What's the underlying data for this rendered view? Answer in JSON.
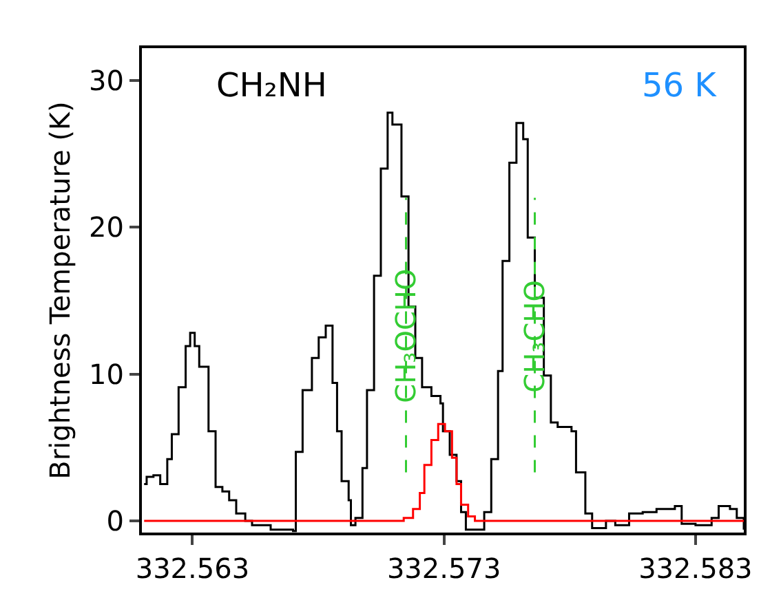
{
  "chart_data": {
    "type": "step",
    "ylabel": "Brightness Temperature (K)",
    "annotations": [
      "CH₂NH",
      "56 K"
    ],
    "xlim": [
      332.56099,
      332.58492
    ],
    "xticks": [
      332.563,
      332.573,
      332.583
    ],
    "ylim": [
      -0.8,
      32.2
    ],
    "yticks": [
      0,
      10,
      20,
      30
    ],
    "grid": false,
    "marker": "none",
    "line_style": "solid",
    "series": [
      {
        "color": "#000000",
        "x": [
          332.56108,
          332.56118,
          332.56145,
          332.56172,
          332.562,
          332.56218,
          332.56245,
          332.56273,
          332.56291,
          332.56309,
          332.56327,
          332.56364,
          332.56392,
          332.56419,
          332.56446,
          332.56474,
          332.5651,
          332.56537,
          332.56611,
          332.567,
          332.56711,
          332.56738,
          332.56775,
          332.56802,
          332.5683,
          332.56857,
          332.56875,
          332.56893,
          332.56921,
          332.5693,
          332.56948,
          332.56976,
          332.56994,
          332.57022,
          332.57049,
          332.57076,
          332.57095,
          332.57131,
          332.57159,
          332.57186,
          332.57213,
          332.5725,
          332.57286,
          332.57296,
          332.57323,
          332.5735,
          332.57368,
          332.57387,
          332.5746,
          332.57488,
          332.57515,
          332.57533,
          332.5756,
          332.57588,
          332.57615,
          332.57633,
          332.57661,
          332.57697,
          332.57725,
          332.57752,
          332.57807,
          332.57825,
          332.57862,
          332.57889,
          332.57944,
          332.57981,
          332.58036,
          332.5809,
          332.58145,
          332.58218,
          332.58245,
          332.583,
          332.58364,
          332.58392,
          332.58437,
          332.58464,
          332.58492
        ],
        "values": [
          2.5,
          3.0,
          3.1,
          2.5,
          4.2,
          5.9,
          9.1,
          11.9,
          12.8,
          11.9,
          10.5,
          6.1,
          2.3,
          2.0,
          1.4,
          0.5,
          0.0,
          -0.3,
          -0.6,
          -0.7,
          4.7,
          8.9,
          11.1,
          12.5,
          13.3,
          9.4,
          6.1,
          2.7,
          1.4,
          -0.3,
          0.2,
          3.6,
          8.9,
          16.7,
          24.0,
          27.8,
          27.0,
          22.1,
          14.6,
          11.1,
          9.1,
          8.5,
          8.0,
          6.1,
          4.5,
          2.7,
          0.6,
          -0.6,
          0.6,
          4.2,
          10.2,
          17.7,
          24.4,
          27.1,
          26.0,
          19.3,
          15.2,
          9.9,
          6.7,
          6.4,
          6.1,
          3.3,
          0.5,
          -0.5,
          0.0,
          -0.3,
          0.5,
          0.6,
          0.8,
          1.0,
          -0.2,
          -0.3,
          0.2,
          1.0,
          0.8,
          0.2,
          -0.6
        ]
      },
      {
        "color": "#ff0000",
        "x": [
          332.56108,
          332.57104,
          332.5714,
          332.57177,
          332.57204,
          332.57222,
          332.5725,
          332.57277,
          332.57304,
          332.57332,
          332.5735,
          332.57368,
          332.57396,
          332.57423,
          332.58492
        ],
        "values": [
          0,
          0,
          0.2,
          0.8,
          1.9,
          3.8,
          5.5,
          6.6,
          6.1,
          4.3,
          2.5,
          1.1,
          0.3,
          0,
          0
        ]
      }
    ],
    "ref_lines": [
      {
        "axis": "x",
        "value": 332.57149,
        "label": "CH₃OCHO",
        "color": "#33cc33",
        "line_style": "dashed"
      },
      {
        "axis": "x",
        "value": 332.57661,
        "label": "CH₃CHO",
        "color": "#33cc33",
        "line_style": "dashed"
      }
    ]
  }
}
